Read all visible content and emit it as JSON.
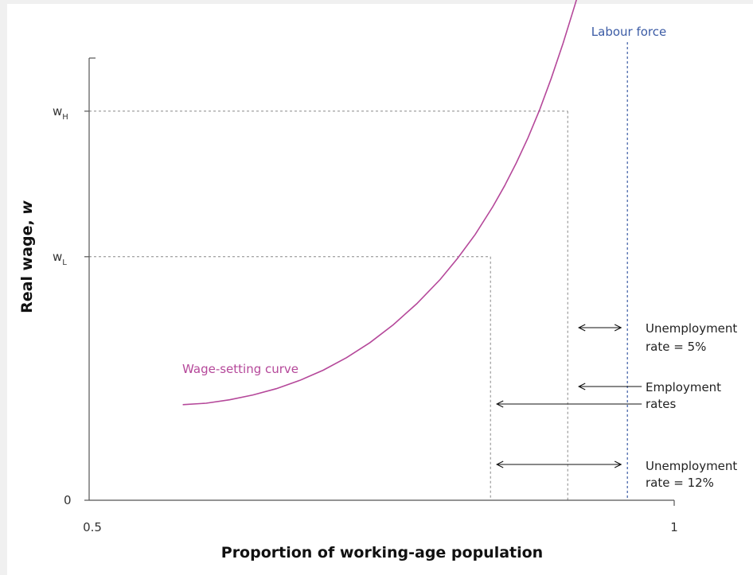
{
  "chart_data": {
    "type": "line",
    "title": "",
    "xlabel": "Proportion of working-age population",
    "ylabel": "Real wage, w",
    "xlim": [
      0.5,
      1
    ],
    "ylim": [
      0,
      1
    ],
    "x_ticks": [
      "0.5",
      "1"
    ],
    "y_ticks": [
      {
        "label_main": "0",
        "label_sub": "",
        "value": 0
      },
      {
        "label_main": "w",
        "label_sub": "L",
        "value": 0.502
      },
      {
        "label_main": "w",
        "label_sub": "H",
        "value": 0.802
      }
    ],
    "series": [
      {
        "name": "Wage-setting curve",
        "color": "#b5489a",
        "x": [
          0.58,
          0.6,
          0.62,
          0.64,
          0.66,
          0.68,
          0.7,
          0.72,
          0.74,
          0.76,
          0.78,
          0.8,
          0.815,
          0.83,
          0.845,
          0.855,
          0.865,
          0.875,
          0.885,
          0.895,
          0.905,
          0.915,
          0.92
        ],
        "y": [
          0.197,
          0.2,
          0.207,
          0.217,
          0.23,
          0.247,
          0.268,
          0.294,
          0.325,
          0.362,
          0.405,
          0.455,
          0.499,
          0.548,
          0.605,
          0.648,
          0.695,
          0.747,
          0.805,
          0.87,
          0.942,
          1.02,
          1.06
        ]
      }
    ],
    "labour_force": {
      "label": "Labour force",
      "x": 0.96,
      "color": "#3b5ba5"
    },
    "employment_levels": {
      "low_wage": 0.843,
      "high_wage": 0.909
    },
    "annotations": {
      "unemployment_5": [
        "Unemployment",
        "rate = 5%"
      ],
      "employment_rates": [
        "Employment",
        "rates"
      ],
      "unemployment_12": [
        "Unemployment",
        "rate = 12%"
      ]
    }
  }
}
